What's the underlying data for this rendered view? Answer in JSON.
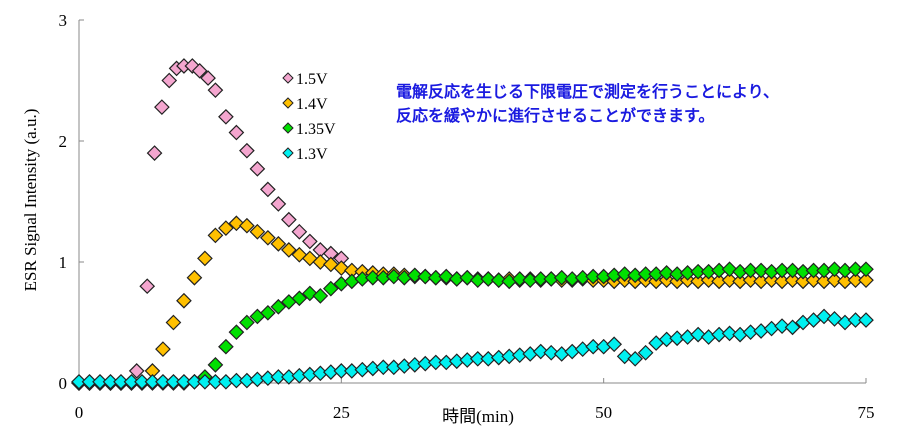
{
  "chart_data": {
    "type": "scatter",
    "xlabel": "時間(min)",
    "ylabel": "ESR Signal Intensity (a.u.)",
    "xlim": [
      0,
      75
    ],
    "ylim": [
      0,
      3
    ],
    "xticks": [
      "0",
      "25",
      "50",
      "75"
    ],
    "yticks": [
      "0",
      "1",
      "2",
      "3"
    ],
    "grid": false,
    "legend_position": "top-center",
    "annotation": [
      "電解反応を生じる下限電圧で測定を行うことにより、",
      "反応を緩やかに進行させることができます。"
    ],
    "annotation_color": "#1a1ae0",
    "series": [
      {
        "name": "1.5V",
        "color": "#f4a6cf",
        "points": [
          [
            0,
            0
          ],
          [
            1,
            0
          ],
          [
            2,
            0
          ],
          [
            3,
            0
          ],
          [
            4,
            0
          ],
          [
            5.5,
            0.1
          ],
          [
            6.5,
            0.8
          ],
          [
            7.2,
            1.9
          ],
          [
            7.9,
            2.28
          ],
          [
            8.6,
            2.5
          ],
          [
            9.3,
            2.6
          ],
          [
            10,
            2.62
          ],
          [
            10.8,
            2.62
          ],
          [
            11.5,
            2.58
          ],
          [
            12.3,
            2.52
          ],
          [
            13,
            2.42
          ],
          [
            14,
            2.2
          ],
          [
            15,
            2.07
          ],
          [
            16,
            1.92
          ],
          [
            17,
            1.77
          ],
          [
            18,
            1.6
          ],
          [
            19,
            1.48
          ],
          [
            20,
            1.35
          ],
          [
            21,
            1.25
          ],
          [
            22,
            1.17
          ],
          [
            23,
            1.1
          ],
          [
            24,
            1.07
          ],
          [
            25,
            1.03
          ]
        ]
      },
      {
        "name": "1.4V",
        "color": "#ffc000",
        "points": [
          [
            0,
            0
          ],
          [
            1,
            0
          ],
          [
            2,
            0
          ],
          [
            3,
            0
          ],
          [
            4,
            0
          ],
          [
            5,
            0
          ],
          [
            6,
            0
          ],
          [
            7,
            0.1
          ],
          [
            8,
            0.28
          ],
          [
            9,
            0.5
          ],
          [
            10,
            0.68
          ],
          [
            11,
            0.87
          ],
          [
            12,
            1.03
          ],
          [
            13,
            1.22
          ],
          [
            14,
            1.28
          ],
          [
            15,
            1.32
          ],
          [
            16,
            1.3
          ],
          [
            17,
            1.25
          ],
          [
            18,
            1.2
          ],
          [
            19,
            1.15
          ],
          [
            20,
            1.1
          ],
          [
            21,
            1.06
          ],
          [
            22,
            1.03
          ],
          [
            23,
            1.0
          ],
          [
            24,
            0.98
          ],
          [
            25,
            0.95
          ],
          [
            26,
            0.93
          ],
          [
            27,
            0.92
          ],
          [
            28,
            0.91
          ],
          [
            29,
            0.9
          ],
          [
            30,
            0.9
          ],
          [
            31,
            0.89
          ],
          [
            32,
            0.88
          ],
          [
            33,
            0.88
          ],
          [
            34,
            0.87
          ],
          [
            35,
            0.87
          ],
          [
            36,
            0.86
          ],
          [
            37,
            0.87
          ],
          [
            38,
            0.86
          ],
          [
            39,
            0.86
          ],
          [
            40,
            0.85
          ],
          [
            41,
            0.86
          ],
          [
            42,
            0.85
          ],
          [
            43,
            0.86
          ],
          [
            44,
            0.85
          ],
          [
            45,
            0.86
          ],
          [
            46,
            0.85
          ],
          [
            47,
            0.85
          ],
          [
            48,
            0.86
          ],
          [
            49,
            0.85
          ],
          [
            50,
            0.85
          ],
          [
            51,
            0.84
          ],
          [
            52,
            0.85
          ],
          [
            53,
            0.84
          ],
          [
            54,
            0.85
          ],
          [
            55,
            0.84
          ],
          [
            56,
            0.85
          ],
          [
            57,
            0.84
          ],
          [
            58,
            0.85
          ],
          [
            59,
            0.84
          ],
          [
            60,
            0.85
          ],
          [
            61,
            0.84
          ],
          [
            62,
            0.85
          ],
          [
            63,
            0.84
          ],
          [
            64,
            0.85
          ],
          [
            65,
            0.84
          ],
          [
            66,
            0.85
          ],
          [
            67,
            0.84
          ],
          [
            68,
            0.85
          ],
          [
            69,
            0.84
          ],
          [
            70,
            0.85
          ],
          [
            71,
            0.84
          ],
          [
            72,
            0.85
          ],
          [
            73,
            0.84
          ],
          [
            74,
            0.85
          ],
          [
            75,
            0.85
          ]
        ]
      },
      {
        "name": "1.35V",
        "color": "#00e000",
        "points": [
          [
            0,
            0
          ],
          [
            1,
            0
          ],
          [
            2,
            0
          ],
          [
            3,
            0
          ],
          [
            4,
            0
          ],
          [
            5,
            0
          ],
          [
            6,
            0
          ],
          [
            7,
            0
          ],
          [
            8,
            0
          ],
          [
            9,
            0
          ],
          [
            10,
            0
          ],
          [
            11,
            0.01
          ],
          [
            12,
            0.05
          ],
          [
            13,
            0.15
          ],
          [
            14,
            0.3
          ],
          [
            15,
            0.42
          ],
          [
            16,
            0.5
          ],
          [
            17,
            0.55
          ],
          [
            18,
            0.58
          ],
          [
            19,
            0.63
          ],
          [
            20,
            0.67
          ],
          [
            21,
            0.7
          ],
          [
            22,
            0.74
          ],
          [
            23,
            0.72
          ],
          [
            24,
            0.78
          ],
          [
            25,
            0.82
          ],
          [
            26,
            0.84
          ],
          [
            27,
            0.86
          ],
          [
            28,
            0.87
          ],
          [
            29,
            0.87
          ],
          [
            30,
            0.88
          ],
          [
            31,
            0.87
          ],
          [
            32,
            0.89
          ],
          [
            33,
            0.88
          ],
          [
            34,
            0.87
          ],
          [
            35,
            0.88
          ],
          [
            36,
            0.86
          ],
          [
            37,
            0.87
          ],
          [
            38,
            0.85
          ],
          [
            39,
            0.86
          ],
          [
            40,
            0.85
          ],
          [
            41,
            0.84
          ],
          [
            42,
            0.86
          ],
          [
            43,
            0.85
          ],
          [
            44,
            0.86
          ],
          [
            45,
            0.86
          ],
          [
            46,
            0.87
          ],
          [
            47,
            0.86
          ],
          [
            48,
            0.87
          ],
          [
            49,
            0.88
          ],
          [
            50,
            0.88
          ],
          [
            51,
            0.89
          ],
          [
            52,
            0.9
          ],
          [
            53,
            0.89
          ],
          [
            54,
            0.9
          ],
          [
            55,
            0.9
          ],
          [
            56,
            0.91
          ],
          [
            57,
            0.9
          ],
          [
            58,
            0.91
          ],
          [
            59,
            0.92
          ],
          [
            60,
            0.92
          ],
          [
            61,
            0.93
          ],
          [
            62,
            0.94
          ],
          [
            63,
            0.92
          ],
          [
            64,
            0.93
          ],
          [
            65,
            0.93
          ],
          [
            66,
            0.92
          ],
          [
            67,
            0.93
          ],
          [
            68,
            0.93
          ],
          [
            69,
            0.92
          ],
          [
            70,
            0.93
          ],
          [
            71,
            0.93
          ],
          [
            72,
            0.94
          ],
          [
            73,
            0.93
          ],
          [
            74,
            0.94
          ],
          [
            75,
            0.94
          ]
        ]
      },
      {
        "name": "1.3V",
        "color": "#00f0f0",
        "points": [
          [
            0,
            0.01
          ],
          [
            1,
            0.01
          ],
          [
            2,
            0.01
          ],
          [
            3,
            0.01
          ],
          [
            4,
            0.01
          ],
          [
            5,
            0.01
          ],
          [
            6,
            0.01
          ],
          [
            7,
            0.01
          ],
          [
            8,
            0.01
          ],
          [
            9,
            0.01
          ],
          [
            10,
            0.01
          ],
          [
            11,
            0.01
          ],
          [
            12,
            0.01
          ],
          [
            13,
            0.01
          ],
          [
            14,
            0.01
          ],
          [
            15,
            0.02
          ],
          [
            16,
            0.02
          ],
          [
            17,
            0.03
          ],
          [
            18,
            0.04
          ],
          [
            19,
            0.05
          ],
          [
            20,
            0.05
          ],
          [
            21,
            0.06
          ],
          [
            22,
            0.07
          ],
          [
            23,
            0.08
          ],
          [
            24,
            0.09
          ],
          [
            25,
            0.1
          ],
          [
            26,
            0.1
          ],
          [
            27,
            0.11
          ],
          [
            28,
            0.12
          ],
          [
            29,
            0.13
          ],
          [
            30,
            0.13
          ],
          [
            31,
            0.14
          ],
          [
            32,
            0.15
          ],
          [
            33,
            0.16
          ],
          [
            34,
            0.17
          ],
          [
            35,
            0.17
          ],
          [
            36,
            0.18
          ],
          [
            37,
            0.19
          ],
          [
            38,
            0.2
          ],
          [
            39,
            0.2
          ],
          [
            40,
            0.21
          ],
          [
            41,
            0.22
          ],
          [
            42,
            0.23
          ],
          [
            43,
            0.24
          ],
          [
            44,
            0.26
          ],
          [
            45,
            0.25
          ],
          [
            46,
            0.24
          ],
          [
            47,
            0.26
          ],
          [
            48,
            0.28
          ],
          [
            49,
            0.3
          ],
          [
            50,
            0.3
          ],
          [
            51,
            0.32
          ],
          [
            52,
            0.22
          ],
          [
            53,
            0.2
          ],
          [
            54,
            0.25
          ],
          [
            55,
            0.33
          ],
          [
            56,
            0.36
          ],
          [
            57,
            0.37
          ],
          [
            58,
            0.38
          ],
          [
            59,
            0.4
          ],
          [
            60,
            0.38
          ],
          [
            61,
            0.4
          ],
          [
            62,
            0.41
          ],
          [
            63,
            0.4
          ],
          [
            64,
            0.42
          ],
          [
            65,
            0.43
          ],
          [
            66,
            0.45
          ],
          [
            67,
            0.47
          ],
          [
            68,
            0.46
          ],
          [
            69,
            0.5
          ],
          [
            70,
            0.52
          ],
          [
            71,
            0.55
          ],
          [
            72,
            0.53
          ],
          [
            73,
            0.5
          ],
          [
            74,
            0.52
          ],
          [
            75,
            0.52
          ]
        ]
      }
    ]
  }
}
